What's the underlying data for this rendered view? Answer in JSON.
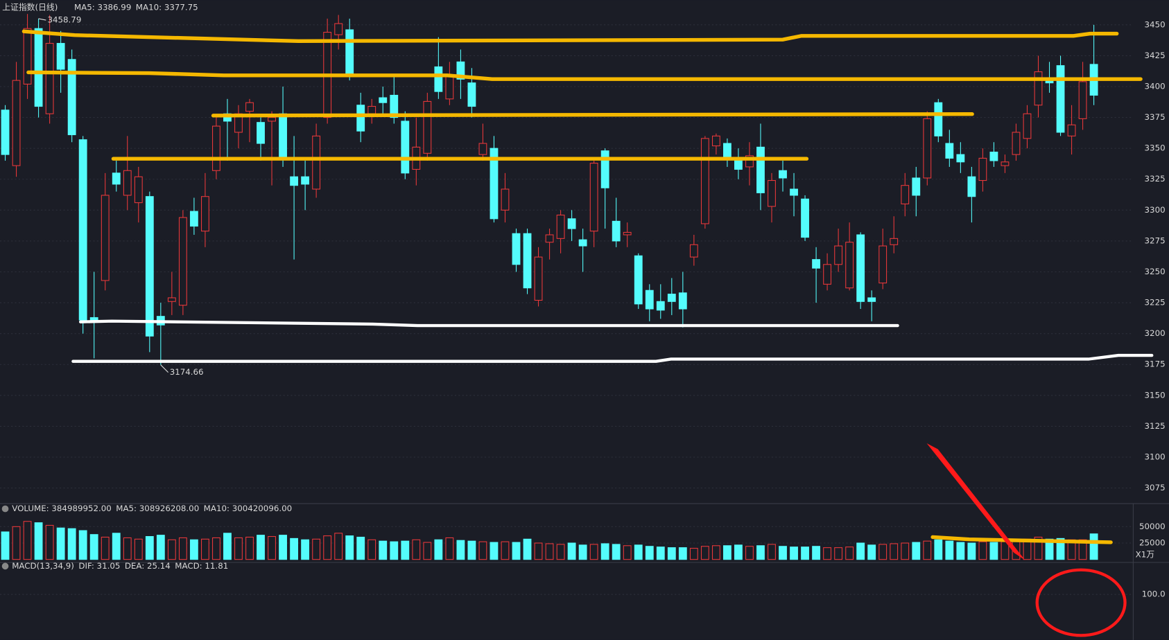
{
  "chart_data": [
    {
      "type": "candlestick",
      "title": "上证指数(日线)",
      "indicators": [
        {
          "label": "MA5: 3386.99",
          "color": "#ffffff"
        },
        {
          "label": "MA10: 3377.75",
          "color": "#f0e020"
        }
      ],
      "annotations": [
        {
          "text": "3458.79",
          "index": 3
        },
        {
          "text": "3174.66",
          "index": 14
        }
      ],
      "up_color": "#e8383a",
      "down_color": "#54fcfc",
      "ylim": [
        3063,
        3470
      ],
      "yticks": [
        3075,
        3100,
        3125,
        3150,
        3175,
        3200,
        3225,
        3250,
        3275,
        3300,
        3325,
        3350,
        3375,
        3400,
        3425,
        3450
      ],
      "grid": true,
      "candles": [
        {
          "open": 3381,
          "high": 3385,
          "low": 3340,
          "close": 3345
        },
        {
          "open": 3336,
          "high": 3420,
          "low": 3327,
          "close": 3405
        },
        {
          "open": 3402,
          "high": 3458.79,
          "low": 3390,
          "close": 3447
        },
        {
          "open": 3447,
          "high": 3455,
          "low": 3375,
          "close": 3384
        },
        {
          "open": 3378,
          "high": 3458,
          "low": 3370,
          "close": 3435
        },
        {
          "open": 3435,
          "high": 3445,
          "low": 3395,
          "close": 3414
        },
        {
          "open": 3422,
          "high": 3430,
          "low": 3355,
          "close": 3361
        },
        {
          "open": 3357,
          "high": 3360,
          "low": 3200,
          "close": 3211
        },
        {
          "open": 3213,
          "high": 3250,
          "low": 3180,
          "close": 3210
        },
        {
          "open": 3243,
          "high": 3330,
          "low": 3235,
          "close": 3312
        },
        {
          "open": 3330,
          "high": 3340,
          "low": 3315,
          "close": 3321
        },
        {
          "open": 3312,
          "high": 3360,
          "low": 3300,
          "close": 3332
        },
        {
          "open": 3306,
          "high": 3335,
          "low": 3290,
          "close": 3327
        },
        {
          "open": 3311,
          "high": 3315,
          "low": 3185,
          "close": 3198
        },
        {
          "open": 3214,
          "high": 3225,
          "low": 3174.66,
          "close": 3207
        },
        {
          "open": 3226,
          "high": 3250,
          "low": 3215,
          "close": 3229
        },
        {
          "open": 3223,
          "high": 3300,
          "low": 3215,
          "close": 3294
        },
        {
          "open": 3299,
          "high": 3310,
          "low": 3280,
          "close": 3287
        },
        {
          "open": 3283,
          "high": 3330,
          "low": 3270,
          "close": 3311
        },
        {
          "open": 3332,
          "high": 3375,
          "low": 3325,
          "close": 3368
        },
        {
          "open": 3378,
          "high": 3390,
          "low": 3340,
          "close": 3372
        },
        {
          "open": 3363,
          "high": 3385,
          "low": 3350,
          "close": 3378
        },
        {
          "open": 3380,
          "high": 3390,
          "low": 3355,
          "close": 3387
        },
        {
          "open": 3371,
          "high": 3375,
          "low": 3340,
          "close": 3354
        },
        {
          "open": 3372,
          "high": 3380,
          "low": 3320,
          "close": 3375
        },
        {
          "open": 3378,
          "high": 3400,
          "low": 3335,
          "close": 3341
        },
        {
          "open": 3327,
          "high": 3360,
          "low": 3260,
          "close": 3320
        },
        {
          "open": 3327,
          "high": 3340,
          "low": 3300,
          "close": 3321
        },
        {
          "open": 3317,
          "high": 3370,
          "low": 3310,
          "close": 3360
        },
        {
          "open": 3375,
          "high": 3455,
          "low": 3370,
          "close": 3444
        },
        {
          "open": 3442,
          "high": 3458,
          "low": 3430,
          "close": 3451
        },
        {
          "open": 3446,
          "high": 3455,
          "low": 3405,
          "close": 3410
        },
        {
          "open": 3385,
          "high": 3395,
          "low": 3355,
          "close": 3364
        },
        {
          "open": 3378,
          "high": 3390,
          "low": 3370,
          "close": 3384
        },
        {
          "open": 3391,
          "high": 3400,
          "low": 3378,
          "close": 3387
        },
        {
          "open": 3393,
          "high": 3410,
          "low": 3370,
          "close": 3375
        },
        {
          "open": 3372,
          "high": 3380,
          "low": 3325,
          "close": 3330
        },
        {
          "open": 3333,
          "high": 3375,
          "low": 3320,
          "close": 3351
        },
        {
          "open": 3346,
          "high": 3395,
          "low": 3340,
          "close": 3388
        },
        {
          "open": 3416,
          "high": 3440,
          "low": 3390,
          "close": 3396
        },
        {
          "open": 3390,
          "high": 3420,
          "low": 3385,
          "close": 3408
        },
        {
          "open": 3420,
          "high": 3430,
          "low": 3390,
          "close": 3406
        },
        {
          "open": 3403,
          "high": 3415,
          "low": 3375,
          "close": 3384
        },
        {
          "open": 3345,
          "high": 3370,
          "low": 3340,
          "close": 3354
        },
        {
          "open": 3350,
          "high": 3360,
          "low": 3290,
          "close": 3293
        },
        {
          "open": 3300,
          "high": 3330,
          "low": 3290,
          "close": 3317
        },
        {
          "open": 3281,
          "high": 3285,
          "low": 3250,
          "close": 3256
        },
        {
          "open": 3281,
          "high": 3285,
          "low": 3232,
          "close": 3237
        },
        {
          "open": 3227,
          "high": 3270,
          "low": 3222,
          "close": 3262
        },
        {
          "open": 3274,
          "high": 3285,
          "low": 3260,
          "close": 3280
        },
        {
          "open": 3277,
          "high": 3300,
          "low": 3265,
          "close": 3296
        },
        {
          "open": 3293,
          "high": 3300,
          "low": 3275,
          "close": 3285
        },
        {
          "open": 3276,
          "high": 3285,
          "low": 3250,
          "close": 3271
        },
        {
          "open": 3283,
          "high": 3340,
          "low": 3270,
          "close": 3338
        },
        {
          "open": 3348,
          "high": 3350,
          "low": 3285,
          "close": 3318
        },
        {
          "open": 3291,
          "high": 3310,
          "low": 3270,
          "close": 3275
        },
        {
          "open": 3280,
          "high": 3290,
          "low": 3270,
          "close": 3282
        },
        {
          "open": 3263,
          "high": 3265,
          "low": 3220,
          "close": 3224
        },
        {
          "open": 3235,
          "high": 3240,
          "low": 3210,
          "close": 3220
        },
        {
          "open": 3226,
          "high": 3240,
          "low": 3212,
          "close": 3219
        },
        {
          "open": 3232,
          "high": 3245,
          "low": 3215,
          "close": 3226
        },
        {
          "open": 3233,
          "high": 3250,
          "low": 3205,
          "close": 3220
        },
        {
          "open": 3262,
          "high": 3280,
          "low": 3255,
          "close": 3272
        },
        {
          "open": 3289,
          "high": 3360,
          "low": 3285,
          "close": 3358
        },
        {
          "open": 3352,
          "high": 3362,
          "low": 3345,
          "close": 3360
        },
        {
          "open": 3354,
          "high": 3358,
          "low": 3335,
          "close": 3342
        },
        {
          "open": 3342,
          "high": 3350,
          "low": 3325,
          "close": 3333
        },
        {
          "open": 3335,
          "high": 3355,
          "low": 3320,
          "close": 3344
        },
        {
          "open": 3351,
          "high": 3370,
          "low": 3300,
          "close": 3314
        },
        {
          "open": 3303,
          "high": 3330,
          "low": 3290,
          "close": 3324
        },
        {
          "open": 3332,
          "high": 3340,
          "low": 3315,
          "close": 3326
        },
        {
          "open": 3317,
          "high": 3330,
          "low": 3295,
          "close": 3312
        },
        {
          "open": 3309,
          "high": 3312,
          "low": 3275,
          "close": 3278
        },
        {
          "open": 3260,
          "high": 3270,
          "low": 3225,
          "close": 3253
        },
        {
          "open": 3240,
          "high": 3265,
          "low": 3235,
          "close": 3256
        },
        {
          "open": 3256,
          "high": 3285,
          "low": 3250,
          "close": 3271
        },
        {
          "open": 3237,
          "high": 3290,
          "low": 3235,
          "close": 3274
        },
        {
          "open": 3280,
          "high": 3282,
          "low": 3220,
          "close": 3226
        },
        {
          "open": 3229,
          "high": 3235,
          "low": 3210,
          "close": 3226
        },
        {
          "open": 3241,
          "high": 3285,
          "low": 3236,
          "close": 3271
        },
        {
          "open": 3272,
          "high": 3295,
          "low": 3265,
          "close": 3277
        },
        {
          "open": 3305,
          "high": 3330,
          "low": 3295,
          "close": 3320
        },
        {
          "open": 3326,
          "high": 3335,
          "low": 3295,
          "close": 3312
        },
        {
          "open": 3326,
          "high": 3380,
          "low": 3320,
          "close": 3374
        },
        {
          "open": 3387,
          "high": 3390,
          "low": 3355,
          "close": 3360
        },
        {
          "open": 3354,
          "high": 3365,
          "low": 3335,
          "close": 3342
        },
        {
          "open": 3345,
          "high": 3355,
          "low": 3330,
          "close": 3339
        },
        {
          "open": 3327,
          "high": 3335,
          "low": 3290,
          "close": 3311
        },
        {
          "open": 3324,
          "high": 3350,
          "low": 3315,
          "close": 3342
        },
        {
          "open": 3347,
          "high": 3355,
          "low": 3335,
          "close": 3340
        },
        {
          "open": 3336,
          "high": 3345,
          "low": 3330,
          "close": 3339
        },
        {
          "open": 3345,
          "high": 3370,
          "low": 3340,
          "close": 3363
        },
        {
          "open": 3358,
          "high": 3385,
          "low": 3350,
          "close": 3378
        },
        {
          "open": 3385,
          "high": 3425,
          "low": 3375,
          "close": 3412
        },
        {
          "open": 3407,
          "high": 3420,
          "low": 3395,
          "close": 3403
        },
        {
          "open": 3417,
          "high": 3425,
          "low": 3360,
          "close": 3363
        },
        {
          "open": 3360,
          "high": 3385,
          "low": 3345,
          "close": 3369
        },
        {
          "open": 3374,
          "high": 3420,
          "low": 3365,
          "close": 3404
        },
        {
          "open": 3418,
          "high": 3450,
          "low": 3385,
          "close": 3393
        }
      ]
    },
    {
      "type": "volume",
      "indicators": [
        {
          "label": "VOLUME: 384989952.00",
          "color": "#ffffff"
        },
        {
          "label": "MA5: 308926208.00",
          "color": "#ffffff"
        },
        {
          "label": "MA10: 300420096.00",
          "color": "#f0e020"
        }
      ],
      "unit": "X1万",
      "ylim": [
        0,
        84000
      ],
      "yticks": [
        25000,
        50000
      ],
      "values": [
        42000,
        50000,
        58000,
        56000,
        52000,
        48000,
        47000,
        44000,
        38000,
        34000,
        40000,
        33000,
        31000,
        35000,
        37000,
        30000,
        33000,
        30000,
        31000,
        33000,
        40000,
        33000,
        34000,
        37000,
        35000,
        37000,
        32000,
        30000,
        31000,
        36000,
        40000,
        36000,
        34000,
        30000,
        28000,
        27000,
        28000,
        30000,
        26000,
        30000,
        33000,
        29000,
        28000,
        27000,
        26000,
        27000,
        26000,
        31000,
        25000,
        24000,
        23000,
        25000,
        22000,
        23000,
        24000,
        23000,
        21000,
        22000,
        20000,
        19000,
        18000,
        18000,
        17000,
        20000,
        21000,
        21000,
        22000,
        20000,
        21000,
        23000,
        20000,
        19000,
        19000,
        20000,
        18000,
        18000,
        19000,
        25000,
        22000,
        23000,
        24000,
        25000,
        26000,
        28000,
        30000,
        28000,
        26000,
        25000,
        27000,
        26000,
        27000,
        29000,
        31000,
        34000,
        31000,
        32000,
        30000,
        30000,
        39000
      ]
    },
    {
      "type": "macd",
      "indicators": [
        {
          "label": "MACD(13,34,9)",
          "color": "#ffffff"
        },
        {
          "label": "DIF: 31.05",
          "color": "#ffffff"
        },
        {
          "label": "DEA: 25.14",
          "color": "#f0e020"
        },
        {
          "label": "MACD: 11.81",
          "color": "#e040e0"
        }
      ],
      "ylim": [
        -52,
        202
      ],
      "yticks": [
        {
          "value": 100,
          "label": "100.0"
        }
      ]
    }
  ]
}
